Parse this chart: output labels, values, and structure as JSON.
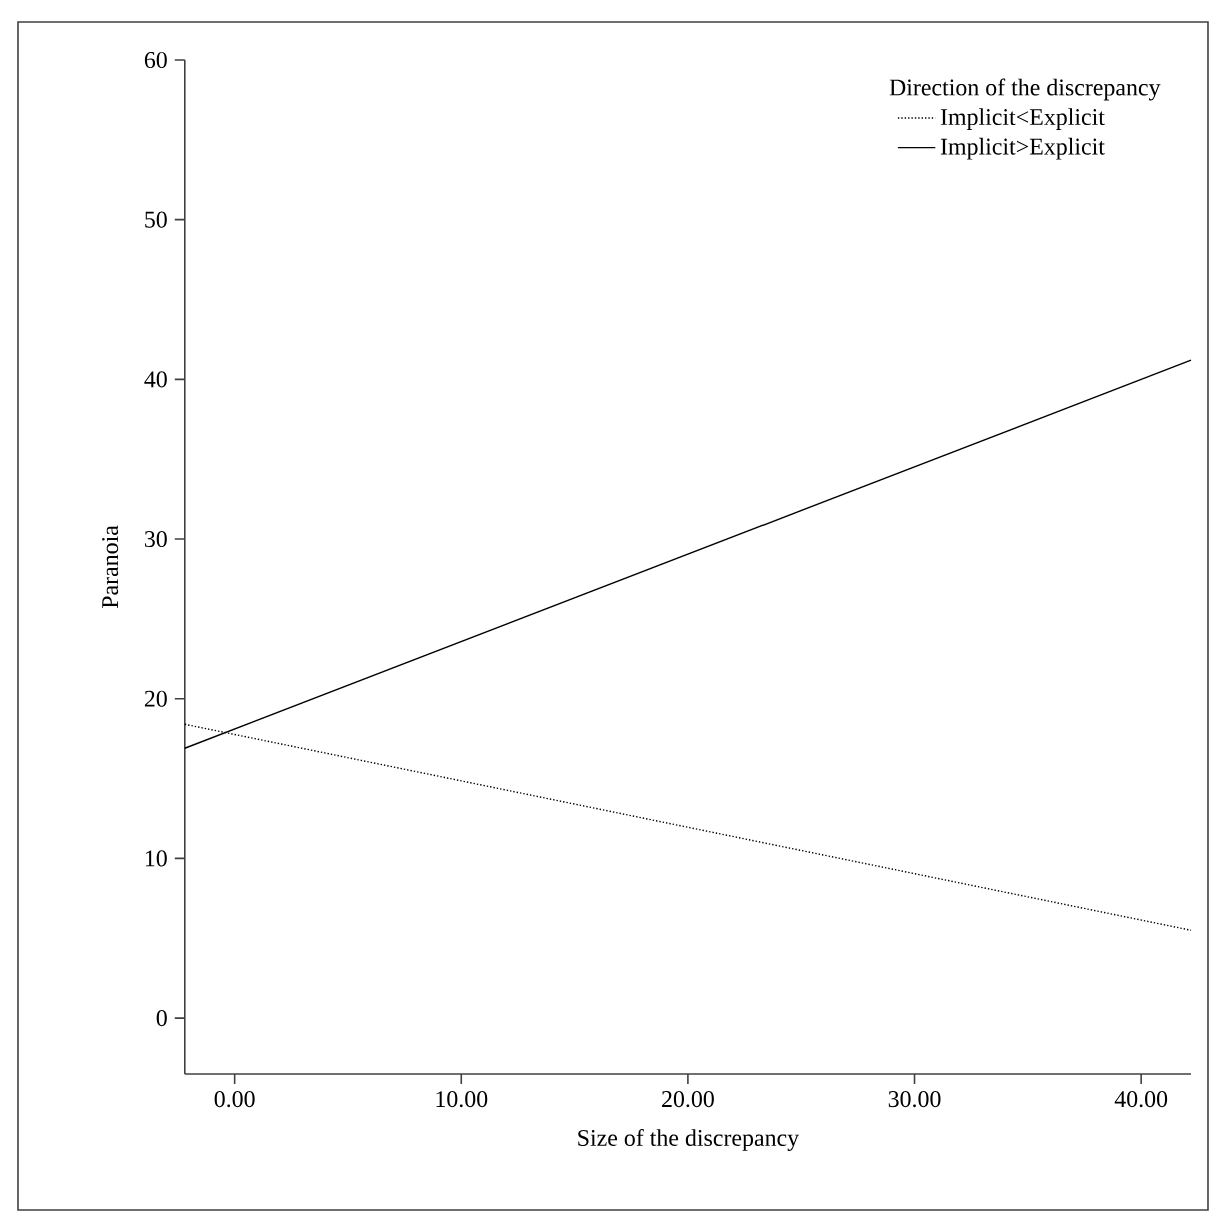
{
  "chart_data": {
    "type": "line",
    "xlabel": "Size of the discrepancy",
    "ylabel": "Paranoia",
    "legend_title": "Direction of the discrepancy",
    "xlim": [
      -2.2,
      42.2
    ],
    "xticks": [
      {
        "value": 0,
        "label": "0.00"
      },
      {
        "value": 10,
        "label": "10.00"
      },
      {
        "value": 20,
        "label": "20.00"
      },
      {
        "value": 30,
        "label": "30.00"
      },
      {
        "value": 40,
        "label": "40.00"
      }
    ],
    "ylim": [
      -3.5,
      60
    ],
    "yticks": [
      0,
      10,
      20,
      30,
      40,
      50,
      60
    ],
    "x": [
      -2.2,
      42.2
    ],
    "series": [
      {
        "name": "Implicit<Explicit",
        "color": "#000000",
        "line_style": "dotted",
        "values": [
          18.4,
          5.5
        ]
      },
      {
        "name": "Implicit>Explicit",
        "color": "#000000",
        "line_style": "solid",
        "values": [
          16.9,
          41.2
        ]
      }
    ],
    "legend": "top right",
    "grid": false,
    "marker": "none"
  }
}
